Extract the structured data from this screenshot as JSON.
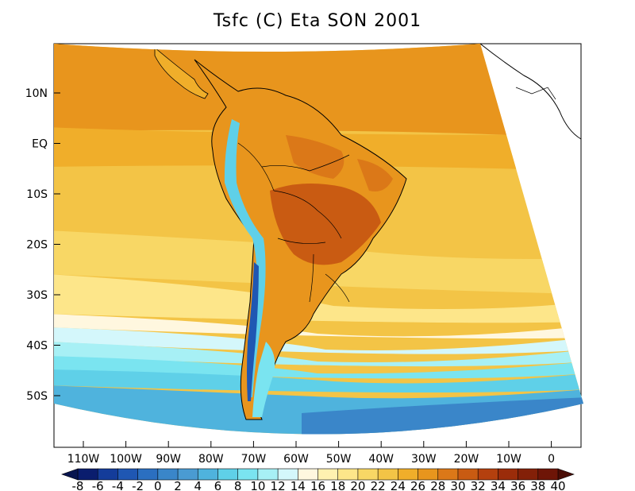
{
  "title": "Tsfc (C) Eta SON 2001",
  "map": {
    "region": "South America",
    "projection": "polar stereographic sector",
    "variable": "Tsfc",
    "units": "C",
    "model": "Eta",
    "season": "SON",
    "year": "2001",
    "lat_ticks": [
      "10N",
      "EQ",
      "10S",
      "20S",
      "30S",
      "40S",
      "50S"
    ],
    "lon_ticks": [
      "110W",
      "100W",
      "90W",
      "80W",
      "70W",
      "60W",
      "50W",
      "40W",
      "30W",
      "20W",
      "10W",
      "0"
    ]
  },
  "colorbar": {
    "labels": [
      "-8",
      "-6",
      "-4",
      "-2",
      "0",
      "2",
      "4",
      "6",
      "8",
      "10",
      "12",
      "14",
      "16",
      "18",
      "20",
      "22",
      "24",
      "26",
      "28",
      "30",
      "32",
      "34",
      "36",
      "38",
      "40"
    ],
    "colors": [
      "#0a1d6e",
      "#143c9a",
      "#1f57b3",
      "#2b6fc0",
      "#3a86c9",
      "#4a9bd2",
      "#4fb3dd",
      "#5fd0e8",
      "#7ae4f0",
      "#a7f0f5",
      "#d4f7fb",
      "#fff7df",
      "#fff1b0",
      "#fde68a",
      "#f8d765",
      "#f3c446",
      "#f0ae2a",
      "#e8951d",
      "#db7818",
      "#c95b12",
      "#b4400e",
      "#9b2c0a",
      "#832008",
      "#6e1507"
    ],
    "min_arrow_color": "#08154f",
    "max_arrow_color": "#4a0c05"
  }
}
